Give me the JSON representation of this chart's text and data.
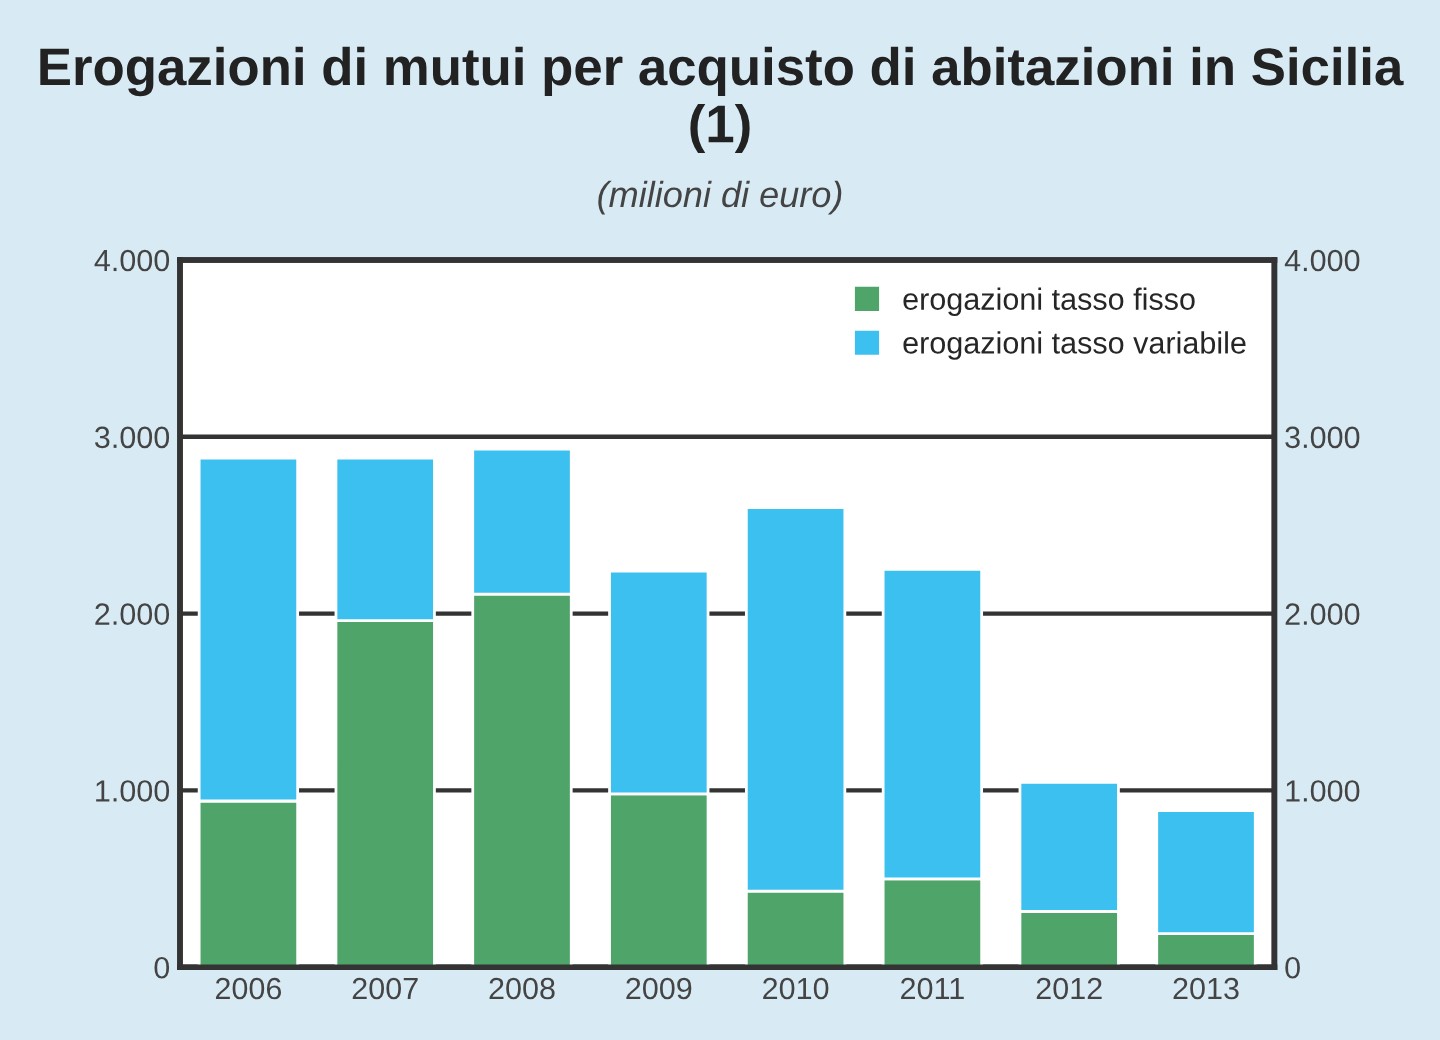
{
  "chart_data": {
    "type": "bar",
    "title": "Erogazioni di mutui per acquisto di abitazioni in Sicilia (1)",
    "subtitle": "(milioni di euro)",
    "categories": [
      "2006",
      "2007",
      "2008",
      "2009",
      "2010",
      "2011",
      "2012",
      "2013"
    ],
    "stacked": true,
    "series": [
      {
        "name": "erogazioni tasso fisso",
        "color": "#4fa46a",
        "values": [
          940,
          1960,
          2110,
          980,
          430,
          500,
          315,
          190
        ]
      },
      {
        "name": "erogazioni tasso variabile",
        "color": "#3cc0ef",
        "values": [
          1940,
          920,
          820,
          1260,
          2170,
          1750,
          730,
          695
        ]
      }
    ],
    "ylim": [
      0,
      4000
    ],
    "yticks": [
      0,
      {
        "value": 1000,
        "label": "1.000"
      },
      {
        "value": 2000,
        "label": "2.000"
      },
      {
        "value": 3000,
        "label": "3.000"
      },
      {
        "value": 4000,
        "label": "4.000"
      }
    ],
    "y2lim": [
      0,
      4000
    ],
    "y2ticks": [
      0,
      {
        "value": 1000,
        "label": "1.000"
      },
      {
        "value": 2000,
        "label": "2.000"
      },
      {
        "value": 3000,
        "label": "3.000"
      },
      {
        "value": 4000,
        "label": "4.000"
      }
    ],
    "grid": true,
    "legend": "top right"
  }
}
